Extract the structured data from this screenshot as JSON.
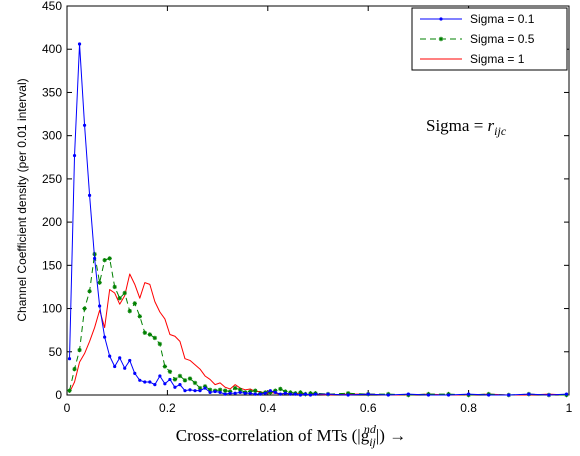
{
  "chart_data": {
    "type": "line",
    "xlabel": "Cross-correlation of MTs (|g",
    "xlabel_sup": "nd",
    "xlabel_sub": "ij",
    "xlabel_tail": "|) →",
    "ylabel": "Channel Coefficient density (per 0.01 interval)",
    "xlim": [
      0,
      1
    ],
    "ylim": [
      0,
      450
    ],
    "xticks": [
      0,
      0.2,
      0.4,
      0.6,
      0.8,
      1
    ],
    "xtick_labels": [
      "0",
      "0.2",
      "0.4",
      "0.6",
      "0.8",
      "1"
    ],
    "yticks": [
      0,
      50,
      100,
      150,
      200,
      250,
      300,
      350,
      400,
      450
    ],
    "ytick_labels": [
      "0",
      "50",
      "100",
      "150",
      "200",
      "250",
      "300",
      "350",
      "400",
      "450"
    ],
    "grid": false,
    "legend_position": "top-right",
    "annotation": {
      "prefix": "Sigma = ",
      "var": "r",
      "sub": "ijc"
    },
    "series": [
      {
        "name": "Sigma = 0.1",
        "color": "#0000ff",
        "dash": "",
        "marker": "dot",
        "x": [
          0.005,
          0.015,
          0.025,
          0.035,
          0.045,
          0.055,
          0.065,
          0.075,
          0.085,
          0.095,
          0.105,
          0.115,
          0.125,
          0.135,
          0.145,
          0.155,
          0.165,
          0.175,
          0.185,
          0.195,
          0.205,
          0.215,
          0.225,
          0.235,
          0.245,
          0.255,
          0.265,
          0.275,
          0.285,
          0.295,
          0.305,
          0.315,
          0.325,
          0.335,
          0.345,
          0.355,
          0.365,
          0.375,
          0.385,
          0.395,
          0.405,
          0.415,
          0.425,
          0.435,
          0.445,
          0.455,
          0.465,
          0.475,
          0.485,
          0.495,
          0.52,
          0.56,
          0.6,
          0.64,
          0.68,
          0.72,
          0.76,
          0.8,
          0.84,
          0.88,
          0.92,
          0.96,
          0.995
        ],
        "y": [
          42,
          277,
          406,
          312,
          231,
          158,
          103,
          67,
          45,
          33,
          43,
          31,
          40,
          25,
          17,
          15,
          15,
          12,
          22,
          13,
          18,
          9,
          12,
          5,
          6,
          5,
          5,
          8,
          3,
          4,
          3,
          1,
          2,
          2,
          3,
          2,
          2,
          1,
          1,
          2,
          5,
          3,
          1,
          2,
          1,
          1,
          0,
          1,
          0,
          1,
          1,
          0,
          1,
          0,
          1,
          0,
          0,
          1,
          0,
          0,
          1,
          0,
          1
        ]
      },
      {
        "name": "Sigma = 0.5",
        "color": "#008000",
        "dash": "6,4",
        "marker": "star",
        "x": [
          0.005,
          0.015,
          0.025,
          0.035,
          0.045,
          0.055,
          0.065,
          0.075,
          0.085,
          0.095,
          0.105,
          0.115,
          0.125,
          0.135,
          0.145,
          0.155,
          0.165,
          0.175,
          0.185,
          0.195,
          0.205,
          0.215,
          0.225,
          0.235,
          0.245,
          0.255,
          0.265,
          0.275,
          0.285,
          0.295,
          0.305,
          0.315,
          0.325,
          0.335,
          0.345,
          0.355,
          0.365,
          0.375,
          0.385,
          0.395,
          0.405,
          0.415,
          0.425,
          0.435,
          0.445,
          0.455,
          0.465,
          0.475,
          0.485,
          0.495,
          0.52,
          0.56,
          0.6,
          0.64,
          0.68,
          0.72,
          0.76,
          0.8,
          0.84,
          0.88,
          0.92,
          0.96,
          0.995
        ],
        "y": [
          5,
          30,
          52,
          100,
          120,
          163,
          130,
          156,
          158,
          125,
          112,
          118,
          97,
          106,
          91,
          72,
          70,
          66,
          59,
          33,
          27,
          18,
          22,
          17,
          19,
          14,
          8,
          10,
          6,
          5,
          6,
          5,
          4,
          8,
          6,
          3,
          4,
          5,
          2,
          3,
          3,
          5,
          7,
          4,
          3,
          2,
          3,
          1,
          2,
          2,
          1,
          2,
          1,
          1,
          0,
          1,
          1,
          0,
          1,
          0,
          1,
          0,
          0
        ]
      },
      {
        "name": "Sigma = 1",
        "color": "#ff0000",
        "dash": "",
        "marker": "none",
        "x": [
          0.005,
          0.015,
          0.025,
          0.035,
          0.045,
          0.055,
          0.065,
          0.075,
          0.085,
          0.095,
          0.105,
          0.115,
          0.125,
          0.135,
          0.145,
          0.155,
          0.165,
          0.175,
          0.185,
          0.195,
          0.205,
          0.215,
          0.225,
          0.235,
          0.245,
          0.255,
          0.265,
          0.275,
          0.285,
          0.295,
          0.305,
          0.315,
          0.325,
          0.335,
          0.345,
          0.355,
          0.365,
          0.375,
          0.385,
          0.395,
          0.405,
          0.415,
          0.425,
          0.435,
          0.445,
          0.455,
          0.465,
          0.475,
          0.485,
          0.495,
          0.52,
          0.56,
          0.6,
          0.64,
          0.68,
          0.72,
          0.76,
          0.8,
          0.84,
          0.88,
          0.92,
          0.96,
          0.995
        ],
        "y": [
          3,
          15,
          38,
          48,
          62,
          78,
          98,
          78,
          122,
          118,
          105,
          115,
          140,
          128,
          112,
          130,
          128,
          108,
          96,
          88,
          70,
          68,
          62,
          42,
          40,
          35,
          30,
          22,
          18,
          12,
          14,
          9,
          7,
          12,
          8,
          6,
          7,
          4,
          4,
          2,
          3,
          2,
          1,
          2,
          1,
          1,
          2,
          0,
          1,
          1,
          0,
          1,
          1,
          0,
          0,
          1,
          0,
          0,
          1,
          0,
          0,
          1,
          0
        ]
      }
    ]
  }
}
